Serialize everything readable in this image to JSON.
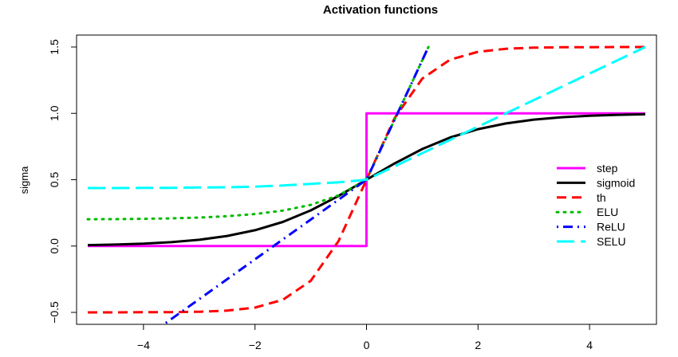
{
  "chart_data": {
    "type": "line",
    "title": "Activation functions",
    "xlabel": "",
    "ylabel": "sigma",
    "xlim": [
      -5.2,
      5.2
    ],
    "ylim": [
      -0.59,
      1.59
    ],
    "x_ticks": [
      -4,
      -2,
      0,
      2,
      4
    ],
    "y_ticks": [
      -0.5,
      0.0,
      0.5,
      1.0,
      1.5
    ],
    "x_tick_labels": [
      "−4",
      "−2",
      "0",
      "2",
      "4"
    ],
    "y_tick_labels": [
      "−0.5",
      "0.0",
      "0.5",
      "1.0",
      "1.5"
    ],
    "grid": false,
    "legend_position": "right",
    "series": [
      {
        "name": "step",
        "color": "#ff00ff",
        "dash": "solid",
        "x": [
          -5,
          -4,
          -3,
          -2,
          -1,
          -0.001,
          0,
          1,
          2,
          3,
          4,
          5
        ],
        "values": [
          0,
          0,
          0,
          0,
          0,
          0,
          1,
          1,
          1,
          1,
          1,
          1
        ]
      },
      {
        "name": "sigmoid",
        "color": "#000000",
        "dash": "solid",
        "x": [
          -5,
          -4.5,
          -4,
          -3.5,
          -3,
          -2.5,
          -2,
          -1.5,
          -1,
          -0.5,
          0,
          0.5,
          1,
          1.5,
          2,
          2.5,
          3,
          3.5,
          4,
          4.5,
          5
        ],
        "values": [
          0.007,
          0.011,
          0.018,
          0.029,
          0.047,
          0.076,
          0.119,
          0.182,
          0.269,
          0.378,
          0.5,
          0.622,
          0.731,
          0.818,
          0.881,
          0.924,
          0.953,
          0.971,
          0.982,
          0.989,
          0.993
        ]
      },
      {
        "name": "th",
        "color": "#ff0000",
        "dash": "dashed",
        "x": [
          -5,
          -4.5,
          -4,
          -3.5,
          -3,
          -2.5,
          -2,
          -1.5,
          -1,
          -0.5,
          0,
          0.5,
          1,
          1.5,
          2,
          2.5,
          3,
          3.5,
          4,
          4.5,
          5
        ],
        "values": [
          -0.5,
          -0.5,
          -0.499,
          -0.498,
          -0.495,
          -0.487,
          -0.464,
          -0.405,
          -0.262,
          0.038,
          0.5,
          0.962,
          1.262,
          1.405,
          1.464,
          1.487,
          1.495,
          1.498,
          1.499,
          1.5,
          1.5
        ]
      },
      {
        "name": "ELU",
        "color": "#00bb00",
        "dash": "dotted",
        "x": [
          -5,
          -4.5,
          -4,
          -3.5,
          -3,
          -2.5,
          -2,
          -1.5,
          -1,
          -0.5,
          0,
          0.5,
          1,
          1.11
        ],
        "values": [
          0.202,
          0.203,
          0.205,
          0.209,
          0.215,
          0.225,
          0.241,
          0.267,
          0.31,
          0.382,
          0.5,
          0.95,
          1.4,
          1.5
        ]
      },
      {
        "name": "ReLU",
        "color": "#0000ff",
        "dash": "dotdash",
        "x": [
          -3.6,
          -3,
          -2,
          -1,
          0,
          0.5,
          1,
          1.11
        ],
        "values": [
          -0.58,
          -0.4,
          -0.1,
          0.2,
          0.5,
          0.95,
          1.4,
          1.5
        ]
      },
      {
        "name": "SELU",
        "color": "#00ffff",
        "dash": "longdash",
        "x": [
          -5,
          -4.5,
          -4,
          -3.5,
          -3,
          -2.5,
          -2,
          -1.5,
          -1,
          -0.5,
          0,
          1,
          2,
          3,
          4,
          5
        ],
        "values": [
          0.437,
          0.437,
          0.438,
          0.439,
          0.441,
          0.443,
          0.448,
          0.456,
          0.469,
          0.48,
          0.5,
          0.7,
          0.9,
          1.1,
          1.3,
          1.5
        ]
      }
    ]
  }
}
